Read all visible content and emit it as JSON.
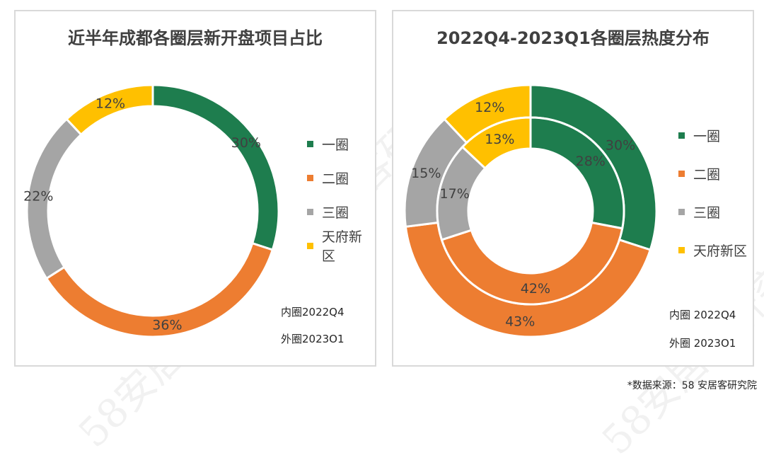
{
  "watermark": "58安居客研究院",
  "source": "*数据来源：58 安居客研究院",
  "categories": [
    "一圈",
    "二圈",
    "三圈",
    "天府新区"
  ],
  "colors": [
    "#1e7d4e",
    "#ed7d31",
    "#a5a5a5",
    "#ffc000"
  ],
  "chart_data": [
    {
      "type": "pie",
      "title": "近半年成都各圈层新开盘项目占比",
      "categories": [
        "一圈",
        "二圈",
        "三圈",
        "天府新区"
      ],
      "series": [
        {
          "values": [
            30,
            36,
            22,
            12
          ],
          "labels": [
            "30%",
            "36%",
            "22%",
            "12%"
          ]
        }
      ],
      "legend": "right",
      "notes": [
        "内圈2022Q4",
        "外圈2023O1"
      ]
    },
    {
      "type": "pie",
      "title": "2022Q4-2023Q1各圈层热度分布",
      "categories": [
        "一圈",
        "二圈",
        "三圈",
        "天府新区"
      ],
      "series": [
        {
          "name": "外圈2023Q1",
          "values": [
            30,
            43,
            15,
            12
          ],
          "labels": [
            "30%",
            "43%",
            "15%",
            "12%"
          ]
        },
        {
          "name": "内圈2022Q4",
          "values": [
            28,
            42,
            17,
            13
          ],
          "labels": [
            "28%",
            "42%",
            "17%",
            "13%"
          ]
        }
      ],
      "legend": "right",
      "notes": [
        "内圈 2022Q4",
        "外圈 2023O1"
      ]
    }
  ]
}
